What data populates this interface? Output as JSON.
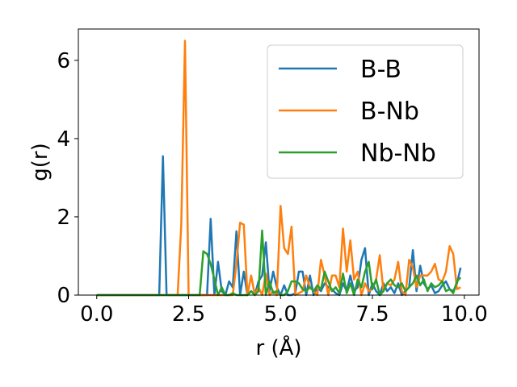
{
  "chart_data": {
    "type": "line",
    "xlabel": "r (Å)",
    "ylabel": "g(r)",
    "xlim": [
      -0.5,
      10.4
    ],
    "ylim": [
      0,
      6.8
    ],
    "xticks": [
      "0.0",
      "2.5",
      "5.0",
      "7.5",
      "10.0"
    ],
    "yticks": [
      "0",
      "2",
      "4",
      "6"
    ],
    "legend_position": "upper right",
    "grid": false,
    "series": [
      {
        "name": "B-B",
        "color": "#1f77b4",
        "x": [
          0,
          1.7,
          1.8,
          1.9,
          2.0,
          3.0,
          3.1,
          3.2,
          3.3,
          3.4,
          3.5,
          3.6,
          3.7,
          3.8,
          3.9,
          4.0,
          4.1,
          4.2,
          4.3,
          4.4,
          4.5,
          4.6,
          4.7,
          4.8,
          4.9,
          5.0,
          5.1,
          5.2,
          5.3,
          5.4,
          5.5,
          5.6,
          5.7,
          5.8,
          5.9,
          6.0,
          6.1,
          6.2,
          6.3,
          6.4,
          6.5,
          6.6,
          6.7,
          6.8,
          6.9,
          7.0,
          7.1,
          7.2,
          7.3,
          7.4,
          7.5,
          7.6,
          7.7,
          7.8,
          7.9,
          8.0,
          8.1,
          8.2,
          8.3,
          8.4,
          8.5,
          8.6,
          8.7,
          8.8,
          8.9,
          9.0,
          9.1,
          9.2,
          9.3,
          9.4,
          9.5,
          9.6,
          9.7,
          9.8,
          9.9
        ],
        "y": [
          0,
          0,
          3.55,
          0,
          0,
          0,
          1.95,
          0,
          0.85,
          0.1,
          0,
          0.35,
          0.2,
          1.63,
          0,
          0.6,
          0,
          0.1,
          0,
          0.35,
          0.5,
          1.35,
          0.1,
          0.6,
          0.2,
          0,
          0.25,
          0,
          0,
          0.05,
          0.6,
          0.6,
          0,
          0.5,
          0,
          0.2,
          0.1,
          0.3,
          0.2,
          0.15,
          0.05,
          0,
          0.3,
          0.1,
          0.5,
          0.1,
          0.2,
          0.9,
          1.2,
          0,
          0.3,
          0.1,
          0,
          0.3,
          0.1,
          0.2,
          0.05,
          0.3,
          0,
          0.1,
          0.2,
          1.15,
          0.1,
          0.75,
          0.3,
          0.15,
          0.25,
          0.05,
          0.1,
          0.25,
          0.35,
          0.15,
          0.1,
          0.3,
          0.7
        ]
      },
      {
        "name": "B-Nb",
        "color": "#ff7f0e",
        "x": [
          0,
          2.2,
          2.3,
          2.4,
          2.5,
          3.7,
          3.8,
          3.9,
          4.0,
          4.1,
          4.2,
          4.3,
          4.4,
          4.5,
          4.6,
          4.7,
          4.8,
          4.9,
          5.0,
          5.1,
          5.2,
          5.3,
          5.4,
          5.5,
          5.6,
          5.7,
          5.8,
          5.9,
          6.0,
          6.1,
          6.2,
          6.3,
          6.4,
          6.5,
          6.6,
          6.7,
          6.8,
          6.9,
          7.0,
          7.1,
          7.2,
          7.3,
          7.4,
          7.5,
          7.6,
          7.7,
          7.8,
          7.9,
          8.0,
          8.1,
          8.2,
          8.3,
          8.4,
          8.5,
          8.6,
          8.7,
          8.8,
          8.9,
          9.0,
          9.1,
          9.2,
          9.3,
          9.4,
          9.5,
          9.6,
          9.7,
          9.8,
          9.9
        ],
        "y": [
          0,
          0,
          1.8,
          6.5,
          0,
          0,
          0.8,
          1.85,
          1.8,
          0,
          0.5,
          0,
          0.2,
          0,
          0.55,
          0,
          0.1,
          0,
          2.28,
          1.2,
          1.05,
          1.75,
          0,
          0.05,
          0.1,
          0.5,
          0.2,
          0.1,
          0,
          0.9,
          0.5,
          0,
          0.5,
          0.5,
          0.2,
          1.7,
          0.6,
          1.4,
          0.4,
          0.6,
          0,
          0.3,
          0.1,
          0.15,
          0.4,
          1.02,
          0.1,
          0.3,
          0.25,
          0.4,
          0.85,
          0.1,
          0,
          0.9,
          0.7,
          0.2,
          0.5,
          0.5,
          0.5,
          0.6,
          0.8,
          0.4,
          0.35,
          0.6,
          1.25,
          1.05,
          0.15,
          0.2
        ]
      },
      {
        "name": "Nb-Nb",
        "color": "#2ca02c",
        "x": [
          0,
          2.7,
          2.8,
          2.9,
          3.0,
          3.1,
          3.2,
          3.3,
          3.4,
          3.5,
          3.6,
          3.7,
          3.8,
          3.9,
          4.0,
          4.1,
          4.2,
          4.3,
          4.4,
          4.5,
          4.6,
          4.7,
          4.8,
          4.9,
          5.0,
          5.1,
          5.2,
          5.3,
          5.4,
          5.5,
          5.6,
          5.7,
          5.8,
          5.9,
          6.0,
          6.1,
          6.2,
          6.3,
          6.4,
          6.5,
          6.6,
          6.7,
          6.8,
          6.9,
          7.0,
          7.1,
          7.2,
          7.3,
          7.4,
          7.5,
          7.6,
          7.7,
          7.8,
          7.9,
          8.0,
          8.1,
          8.2,
          8.3,
          8.4,
          8.5,
          8.6,
          8.7,
          8.8,
          8.9,
          9.0,
          9.1,
          9.2,
          9.3,
          9.4,
          9.5,
          9.6,
          9.7,
          9.8,
          9.9
        ],
        "y": [
          0,
          0,
          0,
          1.12,
          1.05,
          0.8,
          0.4,
          0,
          0.2,
          0,
          0,
          0.05,
          0,
          0,
          0,
          0,
          0.1,
          0,
          0.1,
          1.65,
          0,
          0.35,
          0.05,
          0.1,
          0,
          0,
          0.1,
          0.35,
          0.35,
          0.3,
          0.15,
          0.1,
          0.2,
          0.1,
          0.25,
          0.15,
          0.6,
          0.35,
          0.1,
          0.2,
          0.05,
          0.55,
          0.05,
          0.3,
          0,
          0.4,
          0.2,
          0.6,
          0.85,
          0.15,
          0.4,
          0,
          0.1,
          0.3,
          0.4,
          0.25,
          0.2,
          0.3,
          0.1,
          0.2,
          0.3,
          0.5,
          0.25,
          0.4,
          0.1,
          0.3,
          0.2,
          0.25,
          0.35,
          0.1,
          0.15,
          0.05,
          0.35,
          0.45
        ]
      }
    ]
  }
}
